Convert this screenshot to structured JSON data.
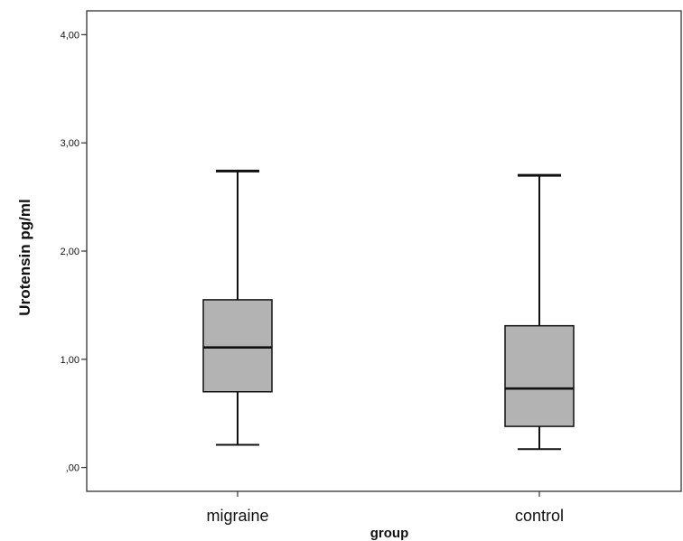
{
  "chart_data": {
    "type": "boxplot",
    "title": "",
    "xlabel": "group",
    "ylabel": "Urotensin pg/ml",
    "categories": [
      "migraine",
      "control"
    ],
    "boxes": [
      {
        "category": "migraine",
        "min": 0.21,
        "q1": 0.7,
        "median": 1.11,
        "q3": 1.55,
        "max": 2.74
      },
      {
        "category": "control",
        "min": 0.17,
        "q1": 0.38,
        "median": 0.73,
        "q3": 1.31,
        "max": 2.7
      }
    ],
    "ylim": [
      -0.22,
      4.22
    ],
    "yticks": [
      0,
      1,
      2,
      3,
      4
    ],
    "ytick_labels": [
      ",00",
      "1,00",
      "2,00",
      "3,00",
      "4,00"
    ],
    "grid": false,
    "legend": "none",
    "colors": {
      "box_fill": "#b3b3b3",
      "stroke": "#111111",
      "frame": "#333333"
    }
  }
}
